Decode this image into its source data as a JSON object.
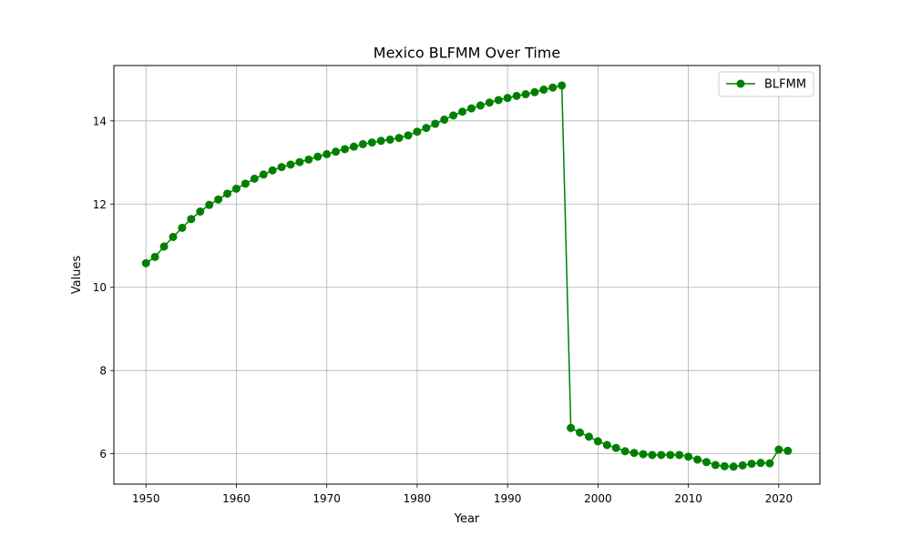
{
  "chart_data": {
    "type": "line",
    "title": "Mexico BLFMM Over Time",
    "xlabel": "Year",
    "ylabel": "Values",
    "xlim": [
      1946.45,
      2024.55
    ],
    "ylim": [
      5.27,
      15.33
    ],
    "xticks": [
      1950,
      1960,
      1970,
      1980,
      1990,
      2000,
      2010,
      2020
    ],
    "yticks": [
      6,
      8,
      10,
      12,
      14
    ],
    "grid": true,
    "legend_position": "top-right",
    "series": [
      {
        "name": "BLFMM",
        "color": "#008000",
        "marker": "circle",
        "x": [
          1950,
          1951,
          1952,
          1953,
          1954,
          1955,
          1956,
          1957,
          1958,
          1959,
          1960,
          1961,
          1962,
          1963,
          1964,
          1965,
          1966,
          1967,
          1968,
          1969,
          1970,
          1971,
          1972,
          1973,
          1974,
          1975,
          1976,
          1977,
          1978,
          1979,
          1980,
          1981,
          1982,
          1983,
          1984,
          1985,
          1986,
          1987,
          1988,
          1989,
          1990,
          1991,
          1992,
          1993,
          1994,
          1995,
          1996,
          1997,
          1998,
          1999,
          2000,
          2001,
          2002,
          2003,
          2004,
          2005,
          2006,
          2007,
          2008,
          2009,
          2010,
          2011,
          2012,
          2013,
          2014,
          2015,
          2016,
          2017,
          2018,
          2019,
          2020,
          2021
        ],
        "values": [
          10.58,
          10.73,
          10.98,
          11.21,
          11.43,
          11.64,
          11.82,
          11.98,
          12.11,
          12.25,
          12.37,
          12.49,
          12.61,
          12.71,
          12.81,
          12.89,
          12.95,
          13.01,
          13.07,
          13.14,
          13.2,
          13.26,
          13.32,
          13.38,
          13.44,
          13.48,
          13.52,
          13.55,
          13.59,
          13.65,
          13.74,
          13.83,
          13.93,
          14.03,
          14.13,
          14.22,
          14.3,
          14.37,
          14.44,
          14.5,
          14.55,
          14.6,
          14.64,
          14.69,
          14.75,
          14.8,
          14.85,
          6.62,
          6.51,
          6.41,
          6.3,
          6.21,
          6.14,
          6.06,
          6.02,
          5.99,
          5.97,
          5.97,
          5.97,
          5.97,
          5.93,
          5.86,
          5.8,
          5.73,
          5.7,
          5.69,
          5.72,
          5.76,
          5.78,
          5.77,
          6.1,
          6.07
        ]
      }
    ]
  }
}
